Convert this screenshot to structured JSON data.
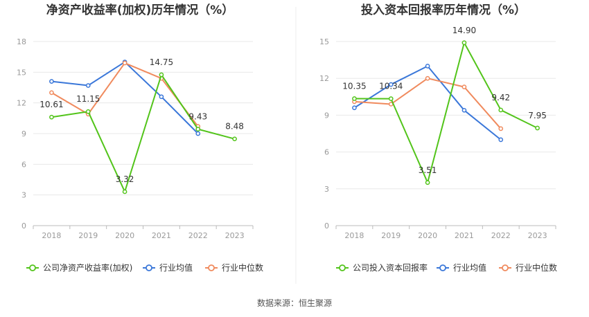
{
  "chart_data": [
    {
      "type": "line",
      "title": "净资产收益率(加权)历年情况（%）",
      "categories": [
        "2018",
        "2019",
        "2020",
        "2021",
        "2022",
        "2023"
      ],
      "ylim": [
        0,
        18
      ],
      "yticks": [
        0,
        3,
        6,
        9,
        12,
        15,
        18
      ],
      "grid": true,
      "legend_position": "bottom",
      "series": [
        {
          "name": "公司净资产收益率(加权)",
          "color": "#52c41a",
          "values": [
            10.61,
            11.15,
            3.32,
            14.75,
            9.43,
            8.48
          ],
          "labels": [
            "10.61",
            "11.15",
            "3.32",
            "14.75",
            "9.43",
            "8.48"
          ]
        },
        {
          "name": "行业均值",
          "color": "#3a77d9",
          "values": [
            14.1,
            13.7,
            16.0,
            12.6,
            9.0,
            null
          ]
        },
        {
          "name": "行业中位数",
          "color": "#f08a5d",
          "values": [
            13.0,
            10.9,
            15.9,
            14.4,
            9.7,
            null
          ]
        }
      ]
    },
    {
      "type": "line",
      "title": "投入资本回报率历年情况（%）",
      "categories": [
        "2018",
        "2019",
        "2020",
        "2021",
        "2022",
        "2023"
      ],
      "ylim": [
        0,
        15
      ],
      "yticks": [
        0,
        3,
        6,
        9,
        12,
        15
      ],
      "grid": true,
      "legend_position": "bottom",
      "series": [
        {
          "name": "公司投入资本回报率",
          "color": "#52c41a",
          "values": [
            10.35,
            10.34,
            3.51,
            14.9,
            9.42,
            7.95
          ],
          "labels": [
            "10.35",
            "10.34",
            "3.51",
            "14.90",
            "9.42",
            "7.95"
          ]
        },
        {
          "name": "行业均值",
          "color": "#3a77d9",
          "values": [
            9.6,
            11.5,
            13.0,
            9.4,
            7.0,
            null
          ]
        },
        {
          "name": "行业中位数",
          "color": "#f08a5d",
          "values": [
            10.1,
            9.9,
            12.0,
            11.3,
            7.9,
            null
          ]
        }
      ]
    }
  ],
  "footer": {
    "source": "数据来源：恒生聚源"
  }
}
